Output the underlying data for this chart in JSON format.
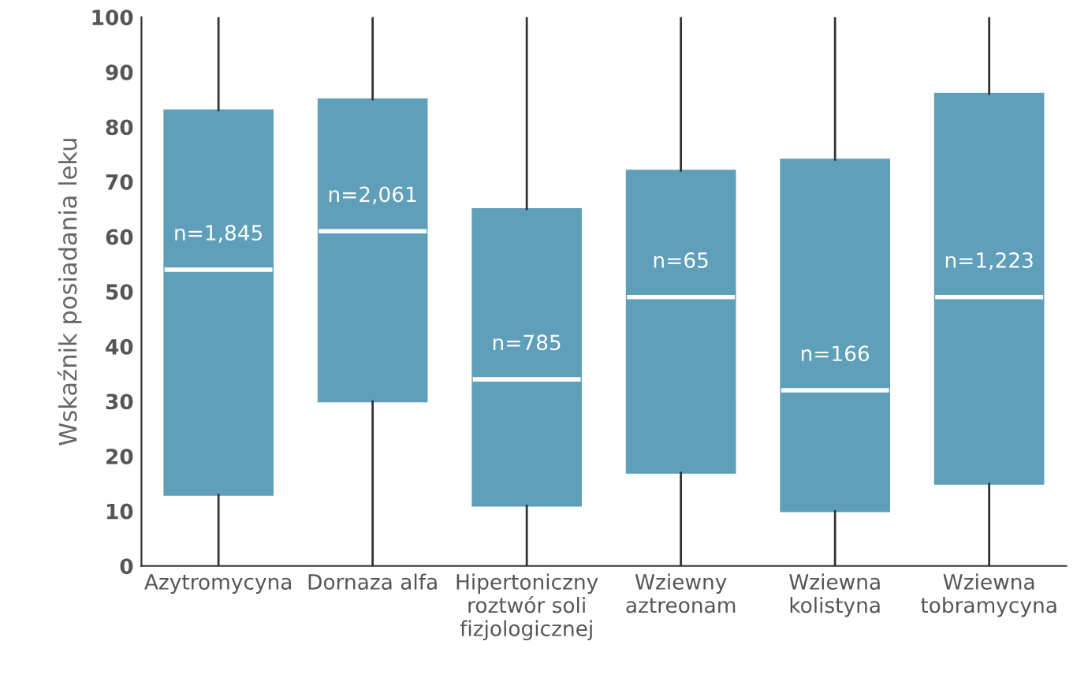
{
  "chart_data": {
    "type": "box",
    "ylabel": "Wskaźnik posiadania leku",
    "categories": [
      "Azytromycyna",
      "Dornaza alfa",
      "Hipertoniczny\nroztwór soli\nfizjologicznej",
      "Wziewny\naztreonam",
      "Wziewna\nkolistyna",
      "Wziewna\ntobramycyna"
    ],
    "boxes": [
      {
        "low": 0,
        "q1": 13,
        "median": 54,
        "q3": 83,
        "high": 100
      },
      {
        "low": 0,
        "q1": 30,
        "median": 61,
        "q3": 85,
        "high": 100
      },
      {
        "low": 0,
        "q1": 11,
        "median": 34,
        "q3": 65,
        "high": 100
      },
      {
        "low": 0,
        "q1": 17,
        "median": 49,
        "q3": 72,
        "high": 100
      },
      {
        "low": 0,
        "q1": 10,
        "median": 32,
        "q3": 74,
        "high": 100
      },
      {
        "low": 0,
        "q1": 15,
        "median": 49,
        "q3": 86,
        "high": 100
      }
    ],
    "color": "#5f9fba",
    "ylim": [
      0,
      100
    ],
    "yticks": [
      0,
      10,
      20,
      30,
      40,
      50,
      60,
      70,
      80,
      90,
      100
    ],
    "grid": false,
    "annotations": [
      "n=1,845",
      "n=2,061",
      "n=785",
      "n=65",
      "n=166",
      "n=1,223"
    ]
  }
}
